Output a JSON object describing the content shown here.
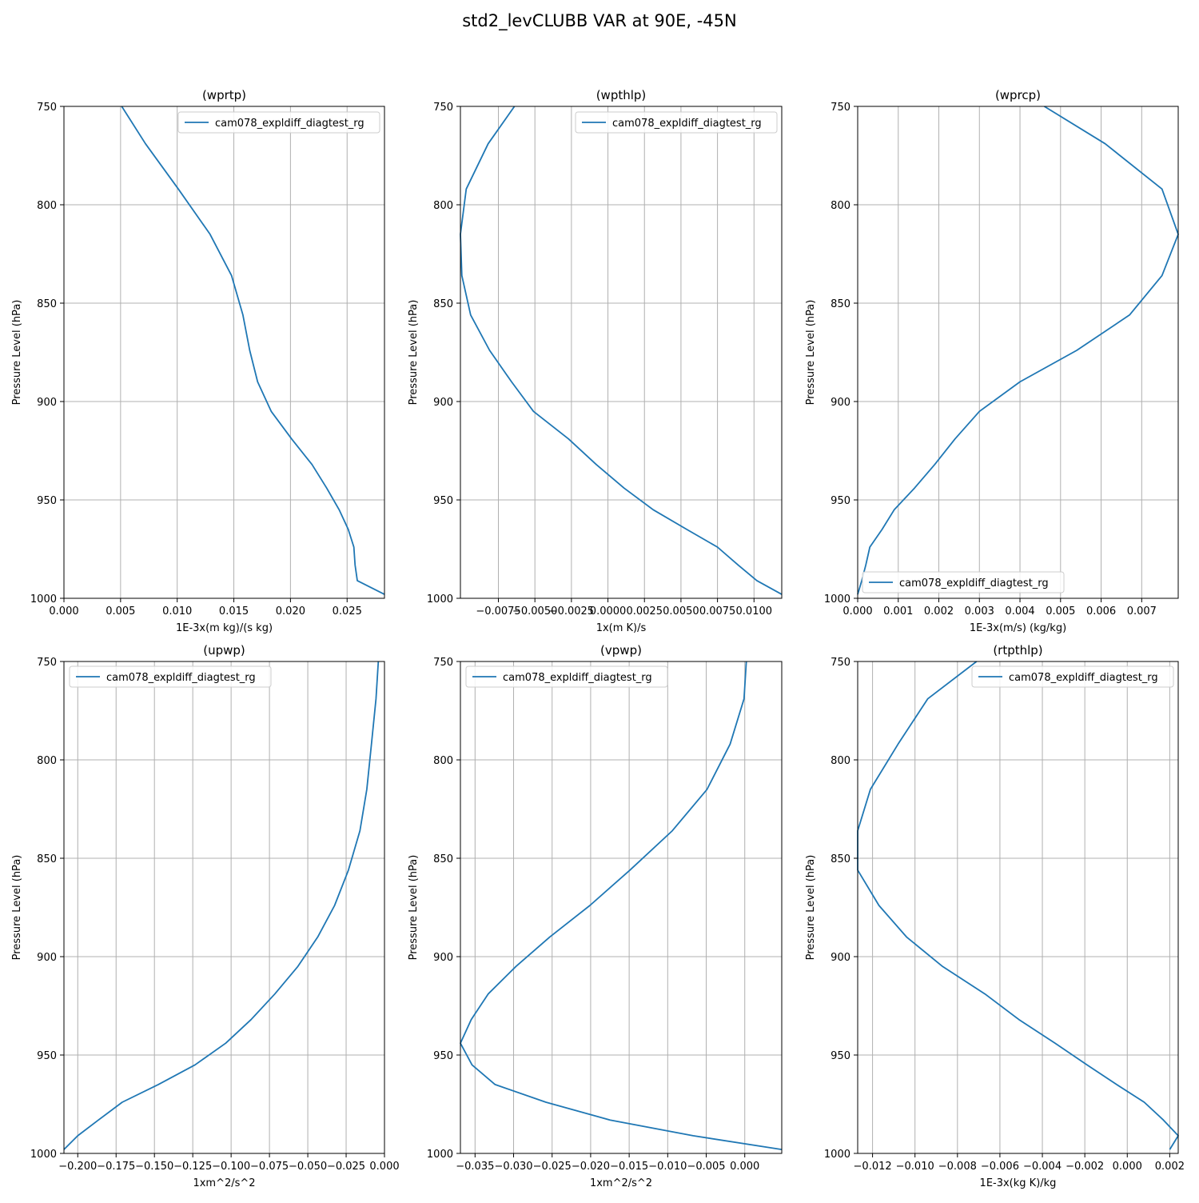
{
  "figure": {
    "suptitle": "std2_levCLUBB VAR at 90E, -45N",
    "line_color": "#1f77b4",
    "grid_color": "#b0b0b0"
  },
  "chart_data": [
    {
      "type": "line",
      "title": "(wprtp)",
      "xlabel": "1E-3x(m kg)/(s kg)",
      "ylabel": "Pressure Level (hPa)",
      "xlim": [
        0.0,
        0.0283
      ],
      "ylim": [
        1000,
        750
      ],
      "xticks": [
        0.0,
        0.005,
        0.01,
        0.015,
        0.02,
        0.025
      ],
      "xtick_labels": [
        "0.000",
        "0.005",
        "0.010",
        "0.015",
        "0.020",
        "0.025"
      ],
      "yticks": [
        750,
        800,
        850,
        900,
        950,
        1000
      ],
      "ytick_labels": [
        "750",
        "800",
        "850",
        "900",
        "950",
        "1000"
      ],
      "grid": true,
      "legend_loc": "upper right",
      "series": [
        {
          "name": "cam078_expldiff_diagtest_rg",
          "x": [
            0.0051,
            0.0072,
            0.0101,
            0.0129,
            0.0148,
            0.0158,
            0.0164,
            0.0171,
            0.0183,
            0.0201,
            0.0219,
            0.0232,
            0.0243,
            0.0251,
            0.0256,
            0.0257,
            0.0259,
            0.0283
          ],
          "y": [
            750,
            769,
            792,
            815,
            836,
            856,
            874,
            890,
            905,
            919,
            932,
            944,
            955,
            965,
            974,
            983,
            991,
            998
          ]
        }
      ]
    },
    {
      "type": "line",
      "title": "(wpthlp)",
      "xlabel": "1x(m K)/s",
      "ylabel": "Pressure Level (hPa)",
      "xlim": [
        -0.0101,
        0.0119
      ],
      "ylim": [
        1000,
        750
      ],
      "xticks": [
        -0.0075,
        -0.005,
        -0.0025,
        0.0,
        0.0025,
        0.005,
        0.0075,
        0.01
      ],
      "xtick_labels": [
        "−0.0075",
        "−0.0050",
        "−0.0025",
        "0.0000",
        "0.0025",
        "0.0050",
        "0.0075",
        "0.0100"
      ],
      "yticks": [
        750,
        800,
        850,
        900,
        950,
        1000
      ],
      "ytick_labels": [
        "750",
        "800",
        "850",
        "900",
        "950",
        "1000"
      ],
      "grid": true,
      "legend_loc": "upper right",
      "series": [
        {
          "name": "cam078_expldiff_diagtest_rg",
          "x": [
            -0.0064,
            -0.0082,
            -0.0097,
            -0.0101,
            -0.01,
            -0.0094,
            -0.0081,
            -0.0066,
            -0.0051,
            -0.0027,
            -0.0008,
            0.0011,
            0.0031,
            0.0054,
            0.0075,
            0.0089,
            0.0102,
            0.0119
          ],
          "y": [
            750,
            769,
            792,
            815,
            836,
            856,
            874,
            890,
            905,
            919,
            932,
            944,
            955,
            965,
            974,
            983,
            991,
            998
          ]
        }
      ]
    },
    {
      "type": "line",
      "title": "(wprcp)",
      "xlabel": "1E-3x(m/s) (kg/kg)",
      "ylabel": "Pressure Level (hPa)",
      "xlim": [
        0.0,
        0.0079
      ],
      "ylim": [
        1000,
        750
      ],
      "xticks": [
        0.0,
        0.001,
        0.002,
        0.003,
        0.004,
        0.005,
        0.006,
        0.007
      ],
      "xtick_labels": [
        "0.000",
        "0.001",
        "0.002",
        "0.003",
        "0.004",
        "0.005",
        "0.006",
        "0.007"
      ],
      "yticks": [
        750,
        800,
        850,
        900,
        950,
        1000
      ],
      "ytick_labels": [
        "750",
        "800",
        "850",
        "900",
        "950",
        "1000"
      ],
      "grid": true,
      "legend_loc": "lower left",
      "series": [
        {
          "name": "cam078_expldiff_diagtest_rg",
          "x": [
            0.0046,
            0.0061,
            0.0075,
            0.0079,
            0.0075,
            0.0067,
            0.0054,
            0.004,
            0.003,
            0.0024,
            0.0019,
            0.0014,
            0.0009,
            0.0006,
            0.0003,
            0.0002,
            0.0001,
            0.0
          ],
          "y": [
            750,
            769,
            792,
            815,
            836,
            856,
            874,
            890,
            905,
            919,
            932,
            944,
            955,
            965,
            974,
            983,
            991,
            998
          ]
        }
      ]
    },
    {
      "type": "line",
      "title": "(upwp)",
      "xlabel": "1xm^2/s^2",
      "ylabel": "Pressure Level (hPa)",
      "xlim": [
        -0.209,
        0.0
      ],
      "ylim": [
        1000,
        750
      ],
      "xticks": [
        -0.2,
        -0.175,
        -0.15,
        -0.125,
        -0.1,
        -0.075,
        -0.05,
        -0.025,
        0.0
      ],
      "xtick_labels": [
        "−0.200",
        "−0.175",
        "−0.150",
        "−0.125",
        "−0.100",
        "−0.075",
        "−0.050",
        "−0.025",
        "0.000"
      ],
      "yticks": [
        750,
        800,
        850,
        900,
        950,
        1000
      ],
      "ytick_labels": [
        "750",
        "800",
        "850",
        "900",
        "950",
        "1000"
      ],
      "grid": true,
      "legend_loc": "upper left",
      "series": [
        {
          "name": "cam078_expldiff_diagtest_rg",
          "x": [
            -0.004,
            -0.0055,
            -0.0085,
            -0.0115,
            -0.016,
            -0.0235,
            -0.0325,
            -0.0435,
            -0.0565,
            -0.0715,
            -0.087,
            -0.1035,
            -0.1235,
            -0.1475,
            -0.171,
            -0.1865,
            -0.2,
            -0.209
          ],
          "y": [
            750,
            769,
            792,
            815,
            836,
            856,
            874,
            890,
            905,
            919,
            932,
            944,
            955,
            965,
            974,
            983,
            991,
            998
          ]
        }
      ]
    },
    {
      "type": "line",
      "title": "(vpwp)",
      "xlabel": "1xm^2/s^2",
      "ylabel": "Pressure Level (hPa)",
      "xlim": [
        -0.0369,
        0.0048
      ],
      "ylim": [
        1000,
        750
      ],
      "xticks": [
        -0.035,
        -0.03,
        -0.025,
        -0.02,
        -0.015,
        -0.01,
        -0.005,
        0.0
      ],
      "xtick_labels": [
        "−0.035",
        "−0.030",
        "−0.025",
        "−0.020",
        "−0.015",
        "−0.010",
        "−0.005",
        "0.000"
      ],
      "yticks": [
        750,
        800,
        850,
        900,
        950,
        1000
      ],
      "ytick_labels": [
        "750",
        "800",
        "850",
        "900",
        "950",
        "1000"
      ],
      "grid": true,
      "legend_loc": "upper left",
      "series": [
        {
          "name": "cam078_expldiff_diagtest_rg",
          "x": [
            0.0002,
            -0.0001,
            -0.0019,
            -0.0049,
            -0.0094,
            -0.0149,
            -0.0201,
            -0.0253,
            -0.0297,
            -0.0333,
            -0.0355,
            -0.0369,
            -0.0354,
            -0.0324,
            -0.0258,
            -0.0175,
            -0.0067,
            0.0048
          ],
          "y": [
            750,
            769,
            792,
            815,
            836,
            856,
            874,
            890,
            905,
            919,
            932,
            944,
            955,
            965,
            974,
            983,
            991,
            998
          ]
        }
      ]
    },
    {
      "type": "line",
      "title": "(rtpthlp)",
      "xlabel": "1E-3x(kg K)/kg",
      "ylabel": "Pressure Level (hPa)",
      "xlim": [
        -0.0127,
        0.0024
      ],
      "ylim": [
        1000,
        750
      ],
      "xticks": [
        -0.012,
        -0.01,
        -0.008,
        -0.006,
        -0.004,
        -0.002,
        0.0,
        0.002
      ],
      "xtick_labels": [
        "−0.012",
        "−0.010",
        "−0.008",
        "−0.006",
        "−0.004",
        "−0.002",
        "0.000",
        "0.002"
      ],
      "yticks": [
        750,
        800,
        850,
        900,
        950,
        1000
      ],
      "ytick_labels": [
        "750",
        "800",
        "850",
        "900",
        "950",
        "1000"
      ],
      "grid": true,
      "legend_loc": "upper right",
      "series": [
        {
          "name": "cam078_expldiff_diagtest_rg",
          "x": [
            -0.0071,
            -0.0094,
            -0.0108,
            -0.0121,
            -0.0127,
            -0.0127,
            -0.0117,
            -0.0104,
            -0.0087,
            -0.0067,
            -0.0051,
            -0.0034,
            -0.0019,
            -0.0005,
            0.0008,
            0.0017,
            0.0024,
            0.002
          ],
          "y": [
            750,
            769,
            792,
            815,
            836,
            856,
            874,
            890,
            905,
            919,
            932,
            944,
            955,
            965,
            974,
            983,
            991,
            998
          ]
        }
      ]
    }
  ]
}
